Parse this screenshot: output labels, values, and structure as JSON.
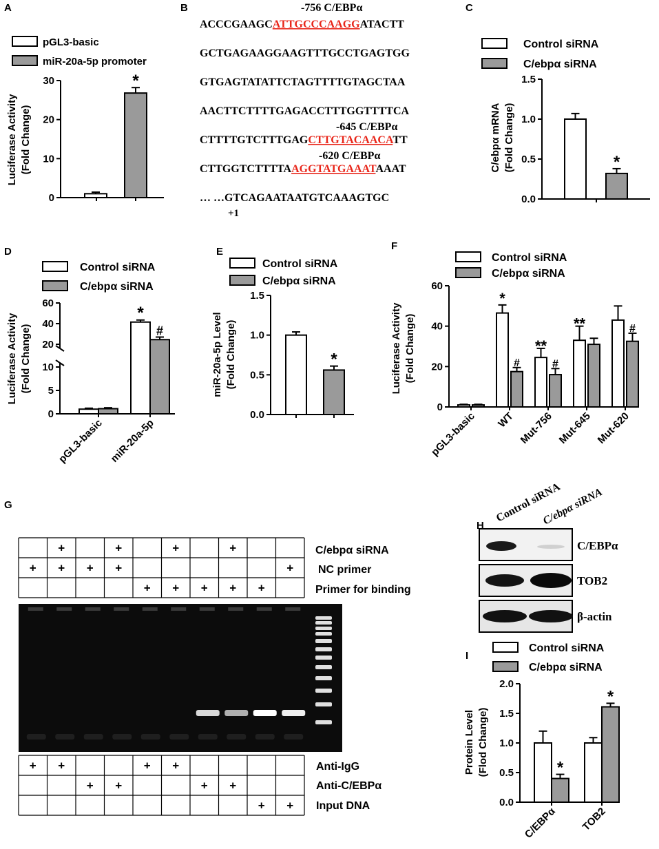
{
  "panels": {
    "A": {
      "letter": "A",
      "legend": [
        "pGL3-basic",
        "miR-20a-5p promoter"
      ],
      "ylabel_line1": "Luciferase Activity",
      "ylabel_line2": "(Fold Change)",
      "yticks": [
        "0",
        "10",
        "20",
        "30"
      ],
      "star": "*"
    },
    "B": {
      "letter": "B",
      "site1_label": "-756   C/EBPα",
      "line1_pre": "ACCCGAAGC",
      "line1_red": "ATTGCCCAAGG",
      "line1_post": "ATACTT",
      "line2": "GCTGAGAAGGAAGTTTGCCTGAGTGG",
      "line3": "GTGAGTATATTCTAGTTTTGTAGCTAA",
      "line4": "AACTTCTTTTGAGACCTTTGGTTTTCA",
      "site2_label": "-645   C/EBPα",
      "line5_pre": "CTTTTGTCTTTGAG",
      "line5_red": "CTTGTACAACA",
      "line5_post": "TT",
      "site3_label": "-620   C/EBPα",
      "line6_pre": "CTTGGTCTTTTA",
      "line6_red": "AGGTATGAAAT",
      "line6_post": "AAAT",
      "line7": "… …GTCAGAATAATGTCAAAGTGC",
      "plus1": "+1"
    },
    "C": {
      "letter": "C",
      "legend": [
        "Control siRNA",
        "C/ebpα siRNA"
      ],
      "ylabel_line1": "C/ebpα mRNA",
      "ylabel_line2": "(Fold Change)",
      "yticks": [
        "0.0",
        "0.5",
        "1.0",
        "1.5"
      ],
      "star": "*"
    },
    "D": {
      "letter": "D",
      "legend": [
        "Control siRNA",
        "C/ebpα siRNA"
      ],
      "ylabel_line1": "Luciferase Activity",
      "ylabel_line2": "(Fold Change)",
      "yticks_low": [
        "0",
        "5",
        "10"
      ],
      "yticks_high": [
        "20",
        "40",
        "60"
      ],
      "xticks": [
        "pGL3-basic",
        "miR-20a-5p"
      ],
      "star": "*",
      "hash": "#"
    },
    "E": {
      "letter": "E",
      "legend": [
        "Control siRNA",
        "C/ebpα siRNA"
      ],
      "ylabel_line1": "miR-20a-5p Level",
      "ylabel_line2": "(Fold Change)",
      "yticks": [
        "0.0",
        "0.5",
        "1.0",
        "1.5"
      ],
      "star": "*"
    },
    "F": {
      "letter": "F",
      "legend": [
        "Control siRNA",
        "C/ebpα siRNA"
      ],
      "ylabel_line1": "Luciferase Activity",
      "ylabel_line2": "(Fold Change)",
      "yticks": [
        "0",
        "20",
        "40",
        "60"
      ],
      "xticks": [
        "pGL3-basic",
        "WT",
        "Mut-756",
        "Mut-645",
        "Mut-620"
      ],
      "marks": [
        "*",
        "#",
        "**",
        "#",
        "**",
        "#"
      ]
    },
    "G": {
      "letter": "G",
      "row_labels_top": [
        "C/ebpα siRNA",
        "NC primer",
        "Primer for binding"
      ],
      "row_labels_bottom": [
        "Anti-IgG",
        "Anti-C/EBPα",
        "Input DNA"
      ],
      "plus": "+"
    },
    "H": {
      "letter": "H",
      "lanes": [
        "Control siRNA",
        "C/ebpα siRNA"
      ],
      "blots": [
        "C/EBPα",
        "TOB2",
        "β-actin"
      ]
    },
    "I": {
      "letter": "I",
      "legend": [
        "Control siRNA",
        "C/ebpα siRNA"
      ],
      "ylabel_line1": "Protein  Level",
      "ylabel_line2": "(Flod Change)",
      "yticks": [
        "0.0",
        "0.5",
        "1.0",
        "1.5",
        "2.0"
      ],
      "xticks": [
        "C/EBPα",
        "TOB2"
      ],
      "star": "*"
    }
  },
  "chart_data": [
    {
      "id": "A",
      "type": "bar",
      "categories": [
        "pGL3-basic",
        "miR-20a-5p promoter"
      ],
      "values": [
        1.0,
        26.8
      ],
      "errors": [
        0.4,
        1.4
      ],
      "ylabel": "Luciferase Activity (Fold Change)",
      "ylim": [
        0,
        30
      ]
    },
    {
      "id": "C",
      "type": "bar",
      "categories": [
        "Control siRNA",
        "C/ebpα siRNA"
      ],
      "values": [
        1.0,
        0.32
      ],
      "errors": [
        0.07,
        0.06
      ],
      "ylabel": "C/ebpα mRNA (Fold Change)",
      "ylim": [
        0,
        1.5
      ]
    },
    {
      "id": "D",
      "type": "bar",
      "categories": [
        "pGL3-basic",
        "miR-20a-5p"
      ],
      "series": [
        {
          "name": "Control siRNA",
          "values": [
            1.0,
            41.5
          ],
          "errors": [
            0.2,
            2.0
          ]
        },
        {
          "name": "C/ebpα siRNA",
          "values": [
            1.1,
            24.5
          ],
          "errors": [
            0.2,
            2.5
          ]
        }
      ],
      "ylabel": "Luciferase Activity (Fold Change)",
      "ylim": [
        0,
        60
      ]
    },
    {
      "id": "E",
      "type": "bar",
      "categories": [
        "Control siRNA",
        "C/ebpα siRNA"
      ],
      "values": [
        1.0,
        0.56
      ],
      "errors": [
        0.04,
        0.05
      ],
      "ylabel": "miR-20a-5p Level (Fold Change)",
      "ylim": [
        0,
        1.5
      ]
    },
    {
      "id": "F",
      "type": "bar",
      "categories": [
        "pGL3-basic",
        "WT",
        "Mut-756",
        "Mut-645",
        "Mut-620"
      ],
      "series": [
        {
          "name": "Control siRNA",
          "values": [
            1.0,
            46.5,
            24.5,
            33.0,
            43.0
          ],
          "errors": [
            0.3,
            4.0,
            4.5,
            7.0,
            7.0
          ]
        },
        {
          "name": "C/ebpα siRNA",
          "values": [
            1.0,
            17.5,
            16.0,
            31.0,
            32.5
          ],
          "errors": [
            0.3,
            2.0,
            3.0,
            3.0,
            4.0
          ]
        }
      ],
      "ylabel": "Luciferase Activity (Fold Change)",
      "ylim": [
        0,
        60
      ]
    },
    {
      "id": "G",
      "type": "table",
      "columns": 10,
      "rows": [
        {
          "label": "C/ebpα siRNA",
          "cells": [
            0,
            1,
            0,
            1,
            0,
            1,
            0,
            1,
            0,
            0
          ]
        },
        {
          "label": "NC primer",
          "cells": [
            1,
            1,
            1,
            1,
            0,
            0,
            0,
            0,
            0,
            1
          ]
        },
        {
          "label": "Primer for binding",
          "cells": [
            0,
            0,
            0,
            0,
            1,
            1,
            1,
            1,
            1,
            0
          ]
        },
        {
          "label": "Anti-IgG",
          "cells": [
            1,
            1,
            0,
            0,
            1,
            1,
            0,
            0,
            0,
            0
          ]
        },
        {
          "label": "Anti-C/EBPα",
          "cells": [
            0,
            0,
            1,
            1,
            0,
            0,
            1,
            1,
            0,
            0
          ]
        },
        {
          "label": "Input DNA",
          "cells": [
            0,
            0,
            0,
            0,
            0,
            0,
            0,
            0,
            1,
            1
          ]
        }
      ]
    },
    {
      "id": "I",
      "type": "bar",
      "categories": [
        "C/EBPα",
        "TOB2"
      ],
      "series": [
        {
          "name": "Control siRNA",
          "values": [
            1.0,
            1.0
          ],
          "errors": [
            0.2,
            0.09
          ]
        },
        {
          "name": "C/ebpα siRNA",
          "values": [
            0.4,
            1.61
          ],
          "errors": [
            0.07,
            0.06
          ]
        }
      ],
      "ylabel": "Protein Level (Flod Change)",
      "ylim": [
        0,
        2.0
      ]
    }
  ]
}
